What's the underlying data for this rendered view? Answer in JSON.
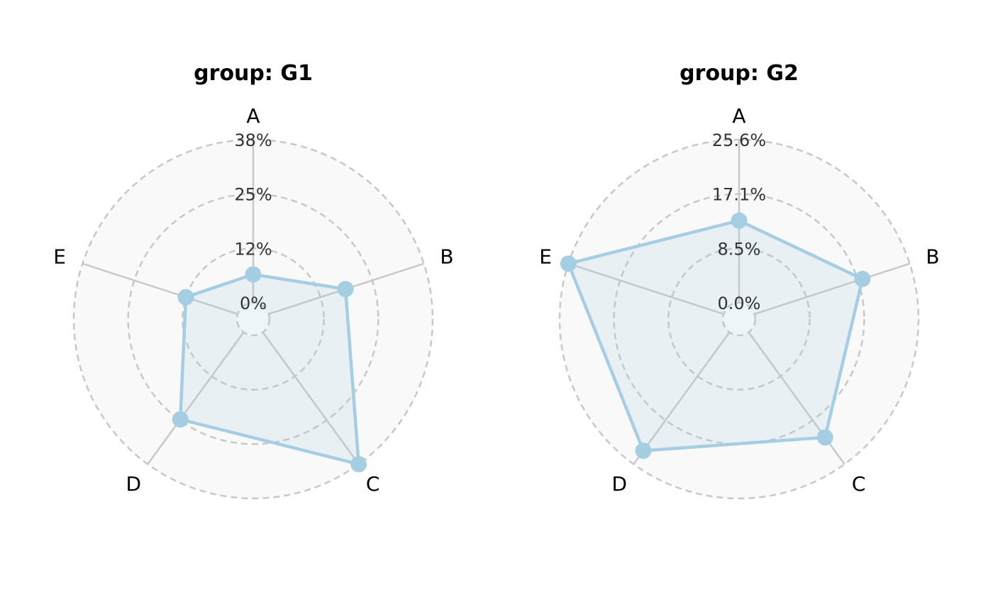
{
  "chart_data": [
    {
      "type": "radar",
      "title": "group: G1",
      "categories": [
        "A",
        "B",
        "C",
        "D",
        "E"
      ],
      "values": [
        6.6,
        18.8,
        38.0,
        25.1,
        12.7
      ],
      "rmax": 38,
      "tick_labels": [
        "0%",
        "12%",
        "25%",
        "38%"
      ],
      "tick_values": [
        0,
        12.67,
        25.33,
        38
      ],
      "series_color": "#a6cee3"
    },
    {
      "type": "radar",
      "title": "group: G2",
      "categories": [
        "A",
        "B",
        "C",
        "D",
        "E"
      ],
      "values": [
        12.9,
        17.8,
        20.4,
        23.0,
        25.6
      ],
      "rmax": 25.6,
      "tick_labels": [
        "0.0%",
        "8.5%",
        "17.1%",
        "25.6%"
      ],
      "tick_values": [
        0,
        8.53,
        17.07,
        25.6
      ],
      "series_color": "#a6cee3"
    }
  ]
}
